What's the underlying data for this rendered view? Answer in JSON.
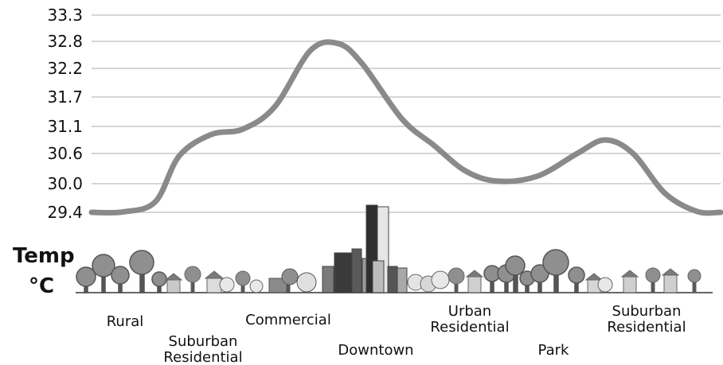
{
  "chart_data": {
    "type": "line",
    "title": "",
    "ylabel": {
      "line1": "Temp",
      "line2": "°C"
    },
    "y_ticks": [
      "29.4",
      "30.0",
      "30.6",
      "31.1",
      "31.7",
      "32.2",
      "32.8",
      "33.3"
    ],
    "ylim": [
      29.4,
      33.3
    ],
    "grid": true,
    "categories": [
      {
        "line1": "Rural",
        "line2": ""
      },
      {
        "line1": "Suburban",
        "line2": "Residential"
      },
      {
        "line1": "Commercial",
        "line2": ""
      },
      {
        "line1": "Downtown",
        "line2": ""
      },
      {
        "line1": "Urban",
        "line2": "Residential"
      },
      {
        "line1": "Park",
        "line2": ""
      },
      {
        "line1": "Suburban",
        "line2": "Residential"
      }
    ],
    "series": [
      {
        "name": "",
        "points": [
          {
            "x": 0.0,
            "y": 29.4
          },
          {
            "x": 0.08,
            "y": 29.41
          },
          {
            "x": 0.16,
            "y": 29.62
          },
          {
            "x": 0.22,
            "y": 30.55
          },
          {
            "x": 0.3,
            "y": 30.95
          },
          {
            "x": 0.38,
            "y": 31.05
          },
          {
            "x": 0.46,
            "y": 31.5
          },
          {
            "x": 0.55,
            "y": 32.6
          },
          {
            "x": 0.62,
            "y": 32.75
          },
          {
            "x": 0.68,
            "y": 32.3
          },
          {
            "x": 0.78,
            "y": 31.25
          },
          {
            "x": 0.86,
            "y": 30.75
          },
          {
            "x": 0.94,
            "y": 30.25
          },
          {
            "x": 1.02,
            "y": 30.05
          },
          {
            "x": 1.12,
            "y": 30.15
          },
          {
            "x": 1.22,
            "y": 30.6
          },
          {
            "x": 1.29,
            "y": 30.85
          },
          {
            "x": 1.36,
            "y": 30.6
          },
          {
            "x": 1.44,
            "y": 29.8
          },
          {
            "x": 1.52,
            "y": 29.42
          },
          {
            "x": 1.58,
            "y": 29.4
          }
        ]
      }
    ],
    "colors": {
      "line": "#8a8a8a",
      "grid": "#c8c8c8",
      "text": "#111111"
    }
  }
}
